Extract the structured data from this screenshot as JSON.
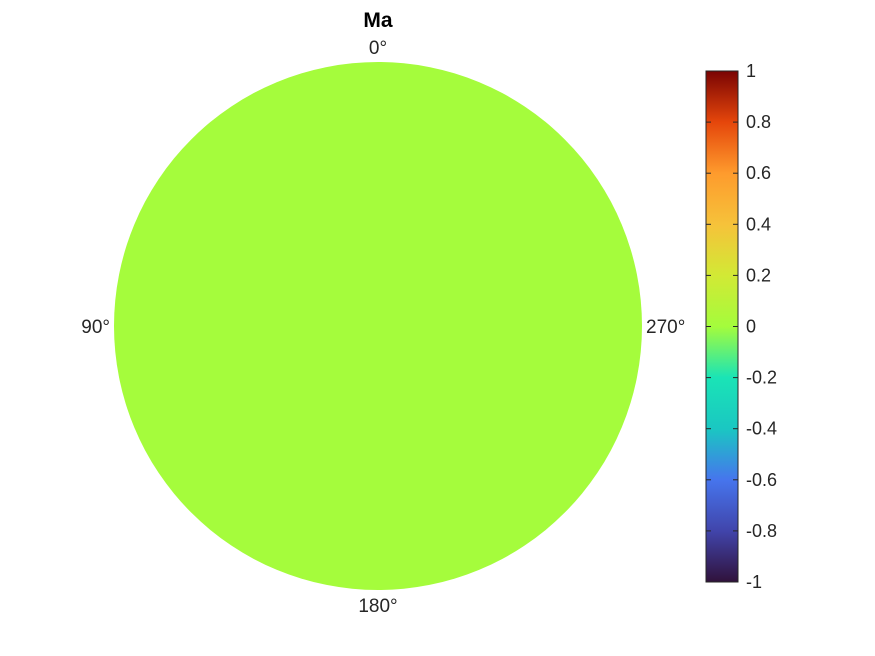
{
  "chart_data": {
    "type": "heatmap",
    "projection": "polar",
    "title": "Ma",
    "angle_labels": [
      {
        "text": "0°",
        "angle": 0
      },
      {
        "text": "90°",
        "angle": 90
      },
      {
        "text": "180°",
        "angle": 180
      },
      {
        "text": "270°",
        "angle": 270
      }
    ],
    "angle_direction": "counterclockwise",
    "field_value": 0,
    "field_color": "#a5fc3c",
    "colorbar": {
      "position": "right",
      "range": [
        -1,
        1
      ],
      "ticks": [
        {
          "value": 1,
          "label": "1"
        },
        {
          "value": 0.8,
          "label": "0.8"
        },
        {
          "value": 0.6,
          "label": "0.6"
        },
        {
          "value": 0.4,
          "label": "0.4"
        },
        {
          "value": 0.2,
          "label": "0.2"
        },
        {
          "value": 0,
          "label": "0"
        },
        {
          "value": -0.2,
          "label": "-0.2"
        },
        {
          "value": -0.4,
          "label": "-0.4"
        },
        {
          "value": -0.6,
          "label": "-0.6"
        },
        {
          "value": -0.8,
          "label": "-0.8"
        },
        {
          "value": -1,
          "label": "-1"
        }
      ],
      "colormap": "turbo",
      "colormap_stops": [
        {
          "value": -1,
          "color": "#30123b"
        },
        {
          "value": -0.8,
          "color": "#4145ab"
        },
        {
          "value": -0.6,
          "color": "#4675ed"
        },
        {
          "value": -0.4,
          "color": "#1ac7c2"
        },
        {
          "value": -0.2,
          "color": "#1ae4b6"
        },
        {
          "value": 0,
          "color": "#a4fc3c"
        },
        {
          "value": 0.2,
          "color": "#d2e935"
        },
        {
          "value": 0.4,
          "color": "#f6c23a"
        },
        {
          "value": 0.6,
          "color": "#fe9b2d"
        },
        {
          "value": 0.8,
          "color": "#e5460b"
        },
        {
          "value": 1,
          "color": "#7a0403"
        }
      ]
    }
  }
}
